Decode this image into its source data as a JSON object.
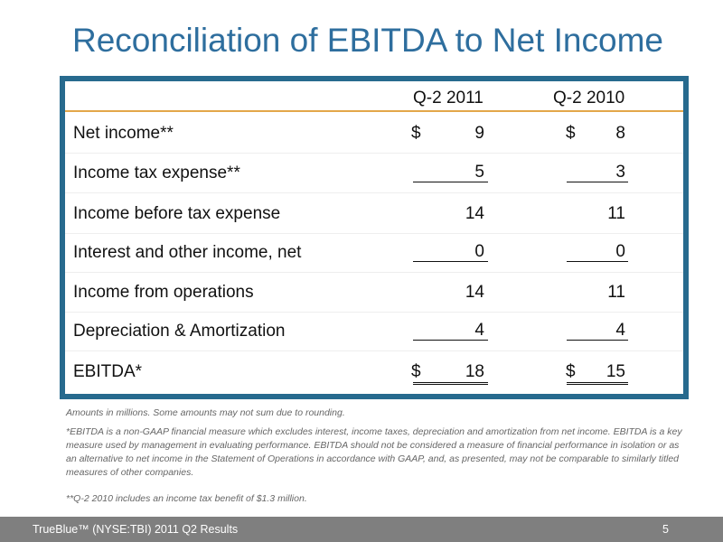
{
  "title": "Reconciliation of EBITDA to Net Income",
  "columns": [
    "Q-2 2011",
    "Q-2 2010"
  ],
  "rows": [
    {
      "label": "Net income**",
      "dollar1": "$",
      "v1": "9",
      "dollar2": "$",
      "v2": "8"
    },
    {
      "label": "Income tax expense**",
      "v1": "5",
      "v2": "3"
    },
    {
      "label": "Income before tax expense",
      "v1": "14",
      "v2": "11"
    },
    {
      "label": "Interest and other income, net",
      "v1": "0",
      "v2": "0"
    },
    {
      "label": "Income from operations",
      "v1": "14",
      "v2": "11"
    },
    {
      "label": "Depreciation & Amortization",
      "v1": "4",
      "v2": "4"
    },
    {
      "label": "EBITDA*",
      "dollar1": "$",
      "v1": "18",
      "dollar2": "$",
      "v2": "15"
    }
  ],
  "notes": [
    "Amounts in millions.  Some amounts may not sum due to rounding.",
    "*EBITDA is a non-GAAP financial measure which excludes interest, income taxes, depreciation and amortization from net income. EBITDA is a key measure used by management in evaluating performance. EBITDA should not be considered a measure of financial performance in isolation or as an alternative to net income in the Statement of Operations in accordance with GAAP, and, as presented, may not be comparable to similarly titled measures of other companies.",
    "**Q-2 2010 includes an income tax benefit of $1.3 million."
  ],
  "footer": {
    "text": "TrueBlue™ (NYSE:TBI)   2011 Q2 Results",
    "page": "5"
  }
}
